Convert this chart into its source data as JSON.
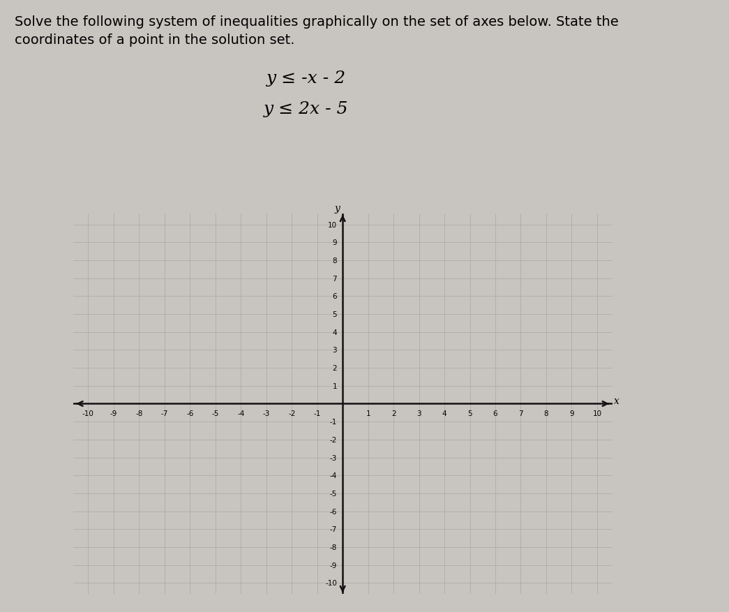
{
  "title_line1": "Solve the following system of inequalities graphically on the set of axes below. State the",
  "title_line2": "coordinates of a point in the solution set.",
  "eq1": "y ≤ -x - 2",
  "eq2": "y ≤ 2x - 5",
  "xlim": [
    -10,
    10
  ],
  "ylim": [
    -10,
    10
  ],
  "xlabel": "x",
  "ylabel": "y",
  "bg_color": "#c8c4c0",
  "grid_color": "#aaa6a2",
  "axis_color": "#111111",
  "tick_fontsize": 7.5,
  "title_fontsize": 14,
  "eq_fontsize": 18
}
